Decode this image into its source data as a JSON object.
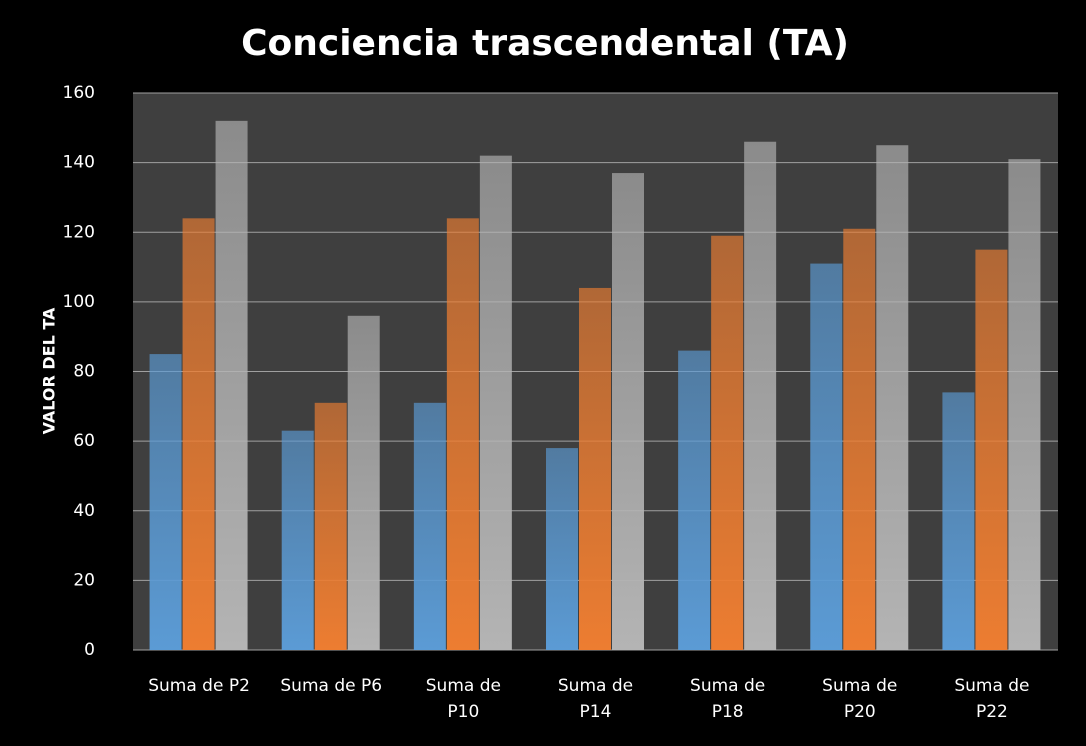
{
  "chart_data": {
    "type": "bar",
    "title": "Conciencia trascendental (TA)",
    "y_label": "VALOR DEL TA",
    "categories": [
      "Suma de P2",
      "Suma de P6",
      "Suma de P10",
      "Suma de P14",
      "Suma de P18",
      "Suma de P20",
      "Suma de P22"
    ],
    "series": [
      {
        "color": "#5b9bd5",
        "values": [
          85,
          63,
          71,
          58,
          86,
          111,
          74
        ]
      },
      {
        "color": "#ed7d31",
        "values": [
          124,
          71,
          124,
          104,
          119,
          121,
          115
        ]
      },
      {
        "color": "#b4b4b4",
        "values": [
          152,
          96,
          142,
          137,
          146,
          145,
          141
        ]
      }
    ],
    "ylim": [
      0,
      160
    ],
    "yticks": [
      0,
      20,
      40,
      60,
      80,
      100,
      120,
      140,
      160
    ],
    "grid": true
  }
}
